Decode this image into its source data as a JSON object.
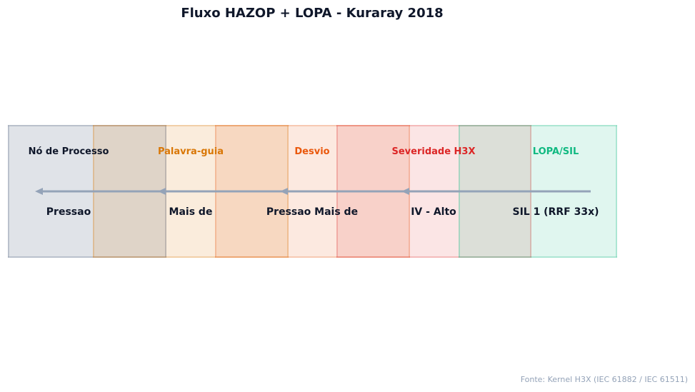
{
  "title": "Fluxo HAZOP + LOPA - Kuraray 2018",
  "stages": [
    {
      "label": "Nó de Processo",
      "value": "Pressao",
      "color": "#0f172a",
      "fill": "rgba(100,116,139,0.20)",
      "stroke": "rgba(100,116,139,0.30)"
    },
    {
      "label": "Palavra-guia",
      "value": "Mais de",
      "color": "#d97706",
      "fill": "rgba(217,119,6,0.14)",
      "stroke": "rgba(217,119,6,0.25)"
    },
    {
      "label": "Desvio",
      "value": "Pressao Mais de",
      "color": "#ea580c",
      "fill": "rgba(234,88,12,0.13)",
      "stroke": "rgba(234,88,12,0.22)"
    },
    {
      "label": "Severidade H3X",
      "value": "IV - Alto",
      "color": "#dc2626",
      "fill": "rgba(220,38,38,0.12)",
      "stroke": "rgba(220,38,38,0.22)"
    },
    {
      "label": "LOPA/SIL",
      "value": "SIL 1 (RRF 33x)",
      "color": "#10b981",
      "fill": "rgba(16,185,129,0.13)",
      "stroke": "rgba(16,185,129,0.25)"
    }
  ],
  "arrow_color": "#94a3b8",
  "footer": "Fonte: Kernel H3X (IEC 61882 / IEC 61511)"
}
